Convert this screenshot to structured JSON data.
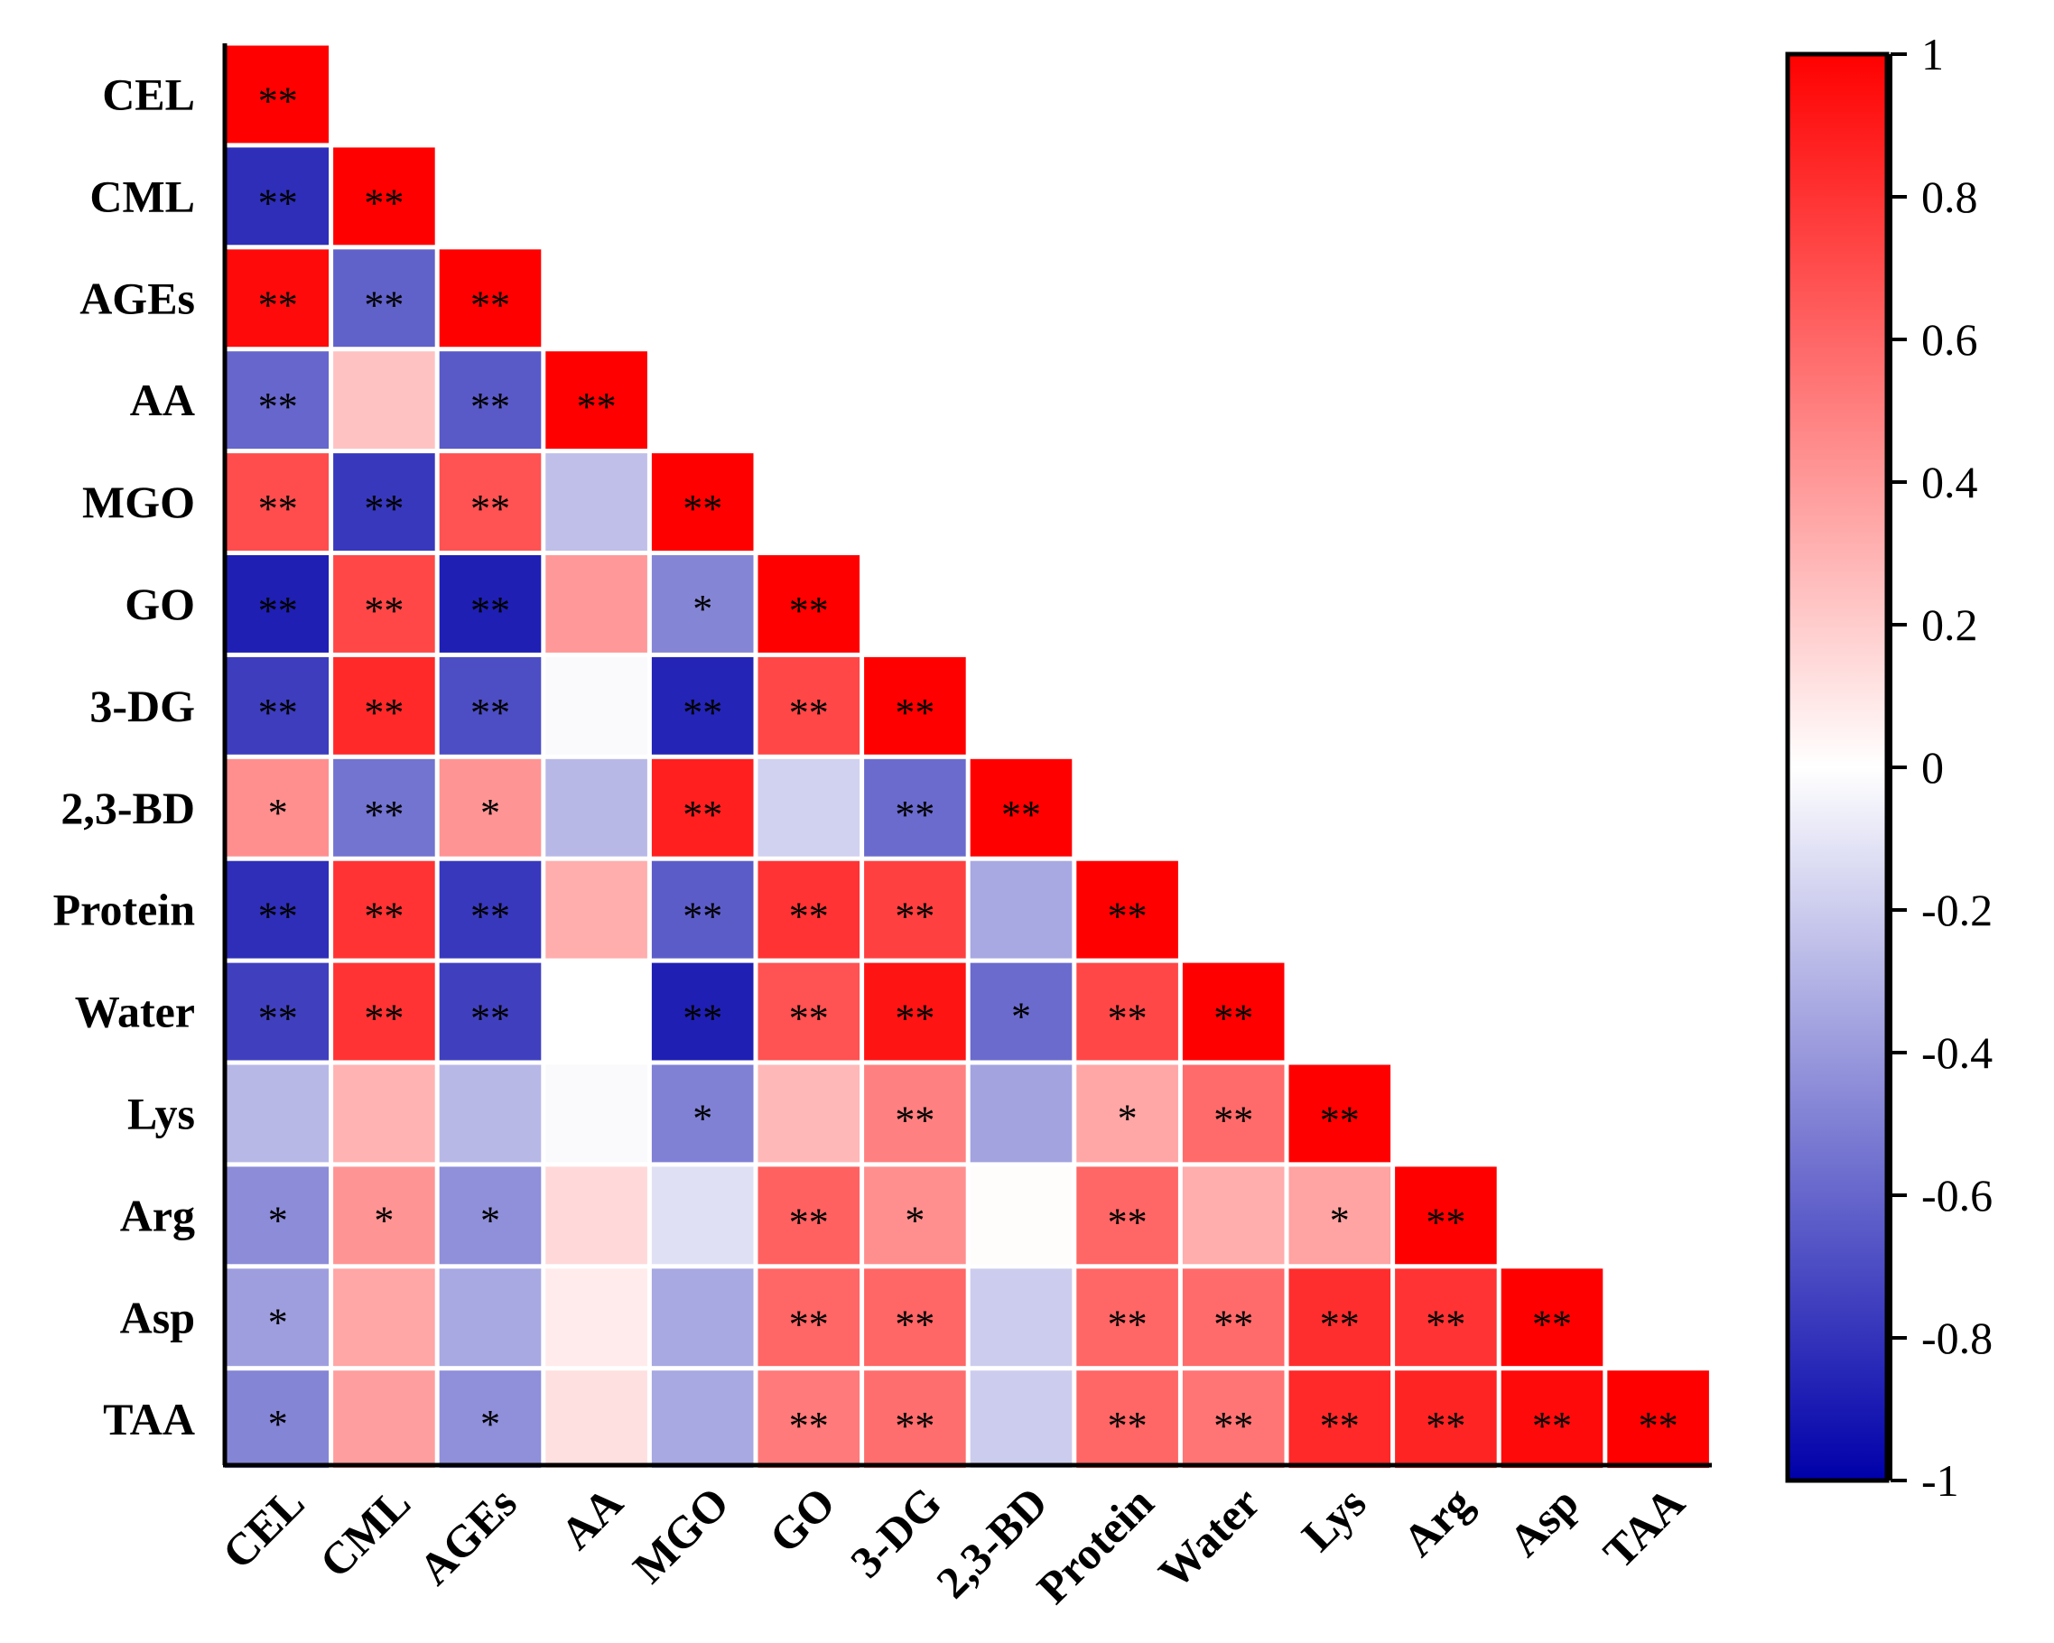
{
  "chart_data": {
    "type": "heatmap",
    "title": "",
    "xlabel": "",
    "ylabel": "",
    "variables": [
      "CEL",
      "CML",
      "AGEs",
      "AA",
      "MGO",
      "GO",
      "3-DG",
      "2,3-BD",
      "Protein",
      "Water",
      "Lys",
      "Arg",
      "Asp",
      "TAA"
    ],
    "matrix": [
      [
        1.0
      ],
      [
        -0.82,
        1.0
      ],
      [
        0.96,
        -0.62,
        1.0
      ],
      [
        -0.6,
        0.24,
        -0.65,
        1.0
      ],
      [
        0.7,
        -0.78,
        0.68,
        -0.25,
        1.0
      ],
      [
        -0.88,
        0.72,
        -0.88,
        0.4,
        -0.48,
        1.0
      ],
      [
        -0.76,
        0.84,
        -0.7,
        -0.02,
        -0.86,
        0.72,
        1.0
      ],
      [
        0.44,
        -0.55,
        0.42,
        -0.28,
        0.88,
        -0.18,
        -0.58,
        1.0
      ],
      [
        -0.82,
        0.8,
        -0.78,
        0.32,
        -0.64,
        0.8,
        0.75,
        -0.34,
        1.0
      ],
      [
        -0.75,
        0.8,
        -0.75,
        0.0,
        -0.88,
        0.68,
        0.92,
        -0.58,
        0.72,
        1.0
      ],
      [
        -0.28,
        0.3,
        -0.28,
        -0.02,
        -0.5,
        0.28,
        0.5,
        -0.36,
        0.35,
        0.58,
        1.0
      ],
      [
        -0.45,
        0.42,
        -0.44,
        0.15,
        -0.12,
        0.62,
        0.44,
        0.01,
        0.6,
        0.32,
        0.36,
        1.0
      ],
      [
        -0.38,
        0.35,
        -0.34,
        0.08,
        -0.34,
        0.6,
        0.6,
        -0.2,
        0.6,
        0.58,
        0.82,
        0.8,
        1.0
      ],
      [
        -0.48,
        0.38,
        -0.44,
        0.12,
        -0.34,
        0.52,
        0.57,
        -0.2,
        0.6,
        0.54,
        0.84,
        0.86,
        0.96,
        1.0
      ]
    ],
    "significance": [
      [
        "**"
      ],
      [
        "**",
        "**"
      ],
      [
        "**",
        "**",
        "**"
      ],
      [
        "**",
        "",
        "**",
        "**"
      ],
      [
        "**",
        "**",
        "**",
        "",
        "**"
      ],
      [
        "**",
        "**",
        "**",
        "",
        "*",
        "**"
      ],
      [
        "**",
        "**",
        "**",
        "",
        "**",
        "**",
        "**"
      ],
      [
        "*",
        "**",
        "*",
        "",
        "**",
        "",
        "**",
        "**"
      ],
      [
        "**",
        "**",
        "**",
        "",
        "**",
        "**",
        "**",
        "",
        "**"
      ],
      [
        "**",
        "**",
        "**",
        "",
        "**",
        "**",
        "**",
        "*",
        "**",
        "**"
      ],
      [
        "",
        "",
        "",
        "",
        "*",
        "",
        "**",
        "",
        "*",
        "**",
        "**"
      ],
      [
        "*",
        "*",
        "*",
        "",
        "",
        "**",
        "*",
        "",
        "**",
        "",
        "*",
        "**"
      ],
      [
        "*",
        "",
        "",
        "",
        "",
        "**",
        "**",
        "",
        "**",
        "**",
        "**",
        "**",
        "**"
      ],
      [
        "*",
        "",
        "*",
        "",
        "",
        "**",
        "**",
        "",
        "**",
        "**",
        "**",
        "**",
        "**",
        "**"
      ]
    ],
    "colorbar": {
      "range": [
        -1,
        1
      ],
      "ticks": [
        1,
        0.8,
        0.6,
        0.4,
        0.2,
        0,
        -0.2,
        -0.4,
        -0.6,
        -0.8,
        -1
      ],
      "tick_labels": [
        "1",
        "0.8",
        "0.6",
        "0.4",
        "0.2",
        "0",
        "-0.2",
        "-0.4",
        "-0.6",
        "-0.8",
        "-1"
      ]
    },
    "colors": {
      "low": "#0000aa",
      "mid": "#ffffff",
      "high": "#ff0000"
    }
  }
}
